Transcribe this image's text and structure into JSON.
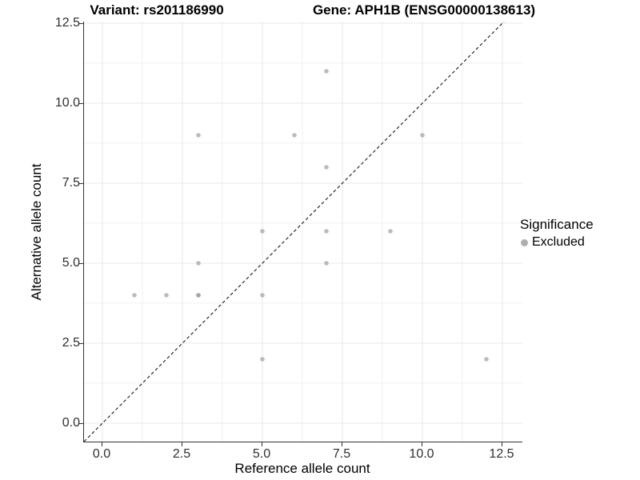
{
  "titles": {
    "left": "Variant: rs201186990",
    "right": "Gene: APH1B (ENSG00000138613)"
  },
  "axes": {
    "x": {
      "label": "Reference allele count",
      "tick_labels": [
        "0.0",
        "2.5",
        "5.0",
        "7.5",
        "10.0",
        "12.5"
      ]
    },
    "y": {
      "label": "Alternative allele count",
      "tick_labels": [
        "0.0",
        "2.5",
        "5.0",
        "7.5",
        "10.0",
        "12.5"
      ]
    }
  },
  "legend": {
    "title": "Significance",
    "items": [
      {
        "label": "Excluded",
        "color": "#9b9b9b"
      }
    ]
  },
  "colors": {
    "background": "#ffffff",
    "grid_major": "#e9e9e9",
    "grid_minor": "#f0f0f0",
    "axis_line": "#333333",
    "point_fill": "#9b9b9b",
    "reference_line": "#000000",
    "text": "#000000",
    "tick_text": "#303030"
  },
  "chart_data": {
    "type": "scatter",
    "title_left": "Variant: rs201186990",
    "title_right": "Gene: APH1B (ENSG00000138613)",
    "xlabel": "Reference allele count",
    "ylabel": "Alternative allele count",
    "x_ticks": [
      0.0,
      2.5,
      5.0,
      7.5,
      10.0,
      12.5
    ],
    "y_ticks": [
      0.0,
      2.5,
      5.0,
      7.5,
      10.0,
      12.5
    ],
    "xlim": [
      -0.6,
      13.1
    ],
    "ylim": [
      -0.6,
      12.6
    ],
    "grid": "major and minor, light gray on white",
    "legend_position": "right",
    "reference_line": {
      "kind": "diagonal y=x",
      "style": "dashed",
      "color": "#000000"
    },
    "series": [
      {
        "name": "Excluded",
        "color": "#9b9b9b",
        "opacity": 0.67,
        "points": [
          [
            1,
            4
          ],
          [
            2,
            4
          ],
          [
            3,
            4
          ],
          [
            3,
            4
          ],
          [
            3,
            5
          ],
          [
            3,
            9
          ],
          [
            5,
            2
          ],
          [
            5,
            4
          ],
          [
            5,
            6
          ],
          [
            6,
            9
          ],
          [
            7,
            5
          ],
          [
            7,
            6
          ],
          [
            7,
            8
          ],
          [
            7,
            11
          ],
          [
            9,
            6
          ],
          [
            10,
            9
          ],
          [
            12,
            2
          ]
        ]
      }
    ]
  }
}
